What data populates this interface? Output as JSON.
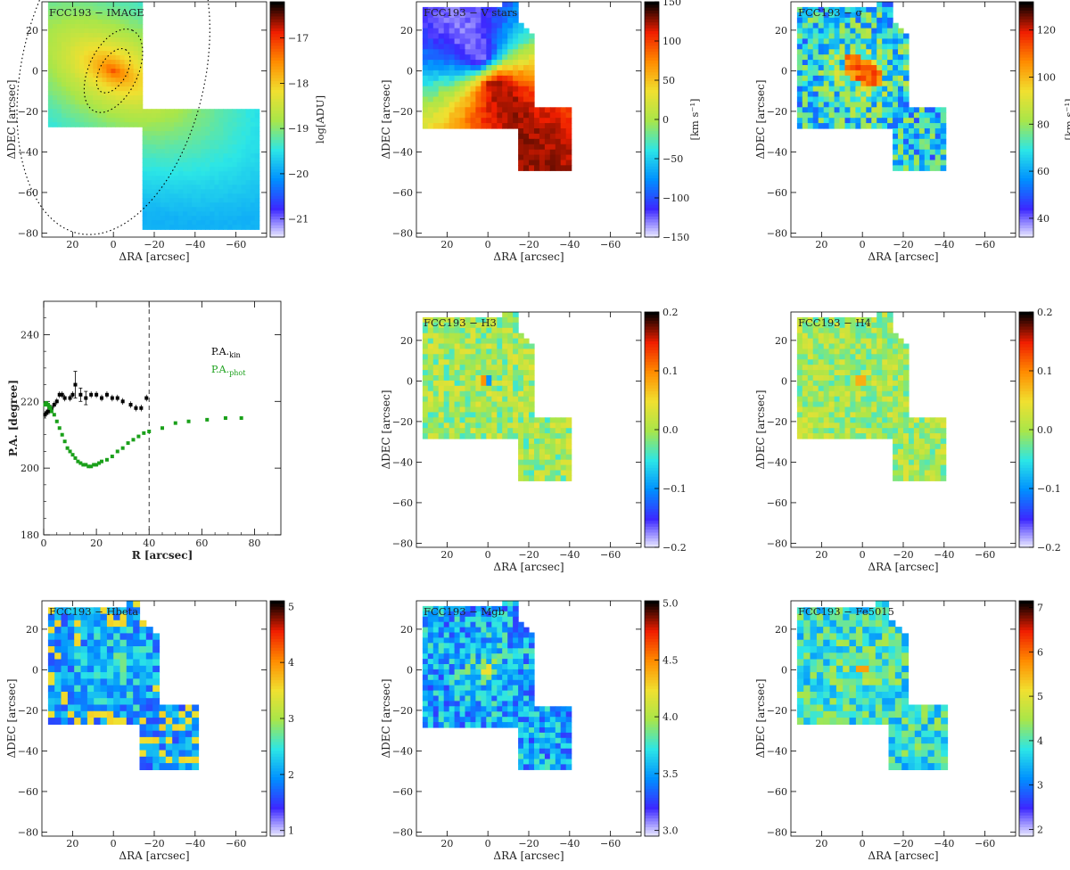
{
  "colors": {
    "cmap": [
      "#f4f4ff",
      "#3c28ff",
      "#0090ff",
      "#2ce6e6",
      "#a8e64a",
      "#f0e030",
      "#ff8c00",
      "#f01e00",
      "#000000"
    ]
  },
  "common": {
    "xlabel": "ΔRA [arcsec]",
    "ylabel": "ΔDEC [arcsec]",
    "xlim": [
      35,
      -75
    ],
    "ylim": [
      -82,
      34
    ],
    "xticks": [
      20,
      0,
      -20,
      -40,
      -60
    ],
    "xtick_labels": [
      "20",
      "0",
      "−20",
      "−40",
      "−60"
    ],
    "yticks": [
      20,
      0,
      -20,
      -40,
      -60,
      -80
    ],
    "ytick_labels": [
      "20",
      "0",
      "−20",
      "−40",
      "−60",
      "−80"
    ]
  },
  "panels": [
    {
      "id": "image",
      "label": "FCC193 − IMAGE",
      "type": "heatmap",
      "field": "image",
      "coverage": "full",
      "colorbar": {
        "min": -21.4,
        "max": -16.2,
        "ticks": [
          -17,
          -18,
          -19,
          -20,
          -21
        ],
        "tick_labels": [
          "−17",
          "−18",
          "−19",
          "−20",
          "−21"
        ],
        "label": "log[ADU]"
      },
      "isophotes": [
        {
          "a": 12,
          "b": 6.5,
          "pa_deg": 30
        },
        {
          "a": 22,
          "b": 12,
          "pa_deg": 25
        },
        {
          "a": 82,
          "b": 45,
          "pa_deg": 12
        }
      ]
    },
    {
      "id": "vstars",
      "label": "FCC193 − V stars",
      "type": "heatmap",
      "field": "velocity",
      "coverage": "partial",
      "colorbar": {
        "min": -150,
        "max": 150,
        "ticks": [
          150,
          100,
          50,
          0,
          -50,
          -100,
          -150
        ],
        "tick_labels": [
          "150",
          "100",
          "50",
          "0",
          "−50",
          "−100",
          "−150"
        ],
        "label": "[km s⁻¹]"
      }
    },
    {
      "id": "sigma",
      "label": "FCC193 − σ",
      "type": "heatmap",
      "field": "sigma",
      "coverage": "partial",
      "colorbar": {
        "min": 32,
        "max": 132,
        "ticks": [
          120,
          100,
          80,
          60,
          40
        ],
        "tick_labels": [
          "120",
          "100",
          "80",
          "60",
          "40"
        ],
        "label": "[km s⁻¹]"
      }
    },
    {
      "id": "pa",
      "type": "scatter",
      "xlabel": "R [arcsec]",
      "ylabel": "P.A. [degree]",
      "xlim": [
        0,
        90
      ],
      "ylim": [
        180,
        250
      ],
      "xticks": [
        0,
        20,
        40,
        60,
        80
      ],
      "yticks": [
        180,
        200,
        220,
        240
      ],
      "vline_x": 40,
      "series": [
        {
          "name": "P.A.kin",
          "legend_main": "P.A.",
          "legend_sub": "kin",
          "color": "#000000",
          "x": [
            0.5,
            1,
            1.5,
            2,
            3,
            4,
            5,
            6,
            7,
            8,
            10,
            11,
            12,
            14,
            16,
            18,
            20,
            22,
            24,
            26,
            28,
            30,
            33,
            35,
            37,
            39
          ],
          "y": [
            216,
            216.5,
            217,
            217,
            218,
            219,
            220,
            222,
            222,
            221,
            221,
            222,
            225,
            222,
            221,
            222,
            222,
            221,
            222,
            221,
            221,
            220,
            219,
            218,
            218,
            221
          ],
          "err": [
            1,
            1,
            1,
            1,
            1,
            1,
            1,
            1,
            1,
            1,
            1,
            1,
            4,
            2,
            2,
            1,
            1,
            1,
            1,
            1,
            1,
            1,
            1,
            1,
            1,
            1
          ]
        },
        {
          "name": "P.A.phot",
          "legend_main": "P.A.",
          "legend_sub": "phot",
          "color": "#1aa01a",
          "x": [
            0.5,
            0.8,
            1.1,
            1.4,
            1.7,
            2,
            2.3,
            2.6,
            3,
            4,
            5,
            6,
            7,
            8,
            9,
            10,
            11,
            12,
            13,
            14,
            15,
            16,
            17,
            18,
            19,
            20,
            21,
            22,
            24,
            26,
            28,
            30,
            32,
            34,
            36,
            38,
            40,
            45,
            50,
            55,
            62,
            69,
            75
          ],
          "y": [
            219,
            219.5,
            219.5,
            219,
            219,
            218.5,
            218,
            218,
            217,
            216,
            214,
            212,
            210,
            208,
            206,
            205,
            204,
            203,
            202,
            201.5,
            201,
            201,
            200.5,
            200.5,
            201,
            201,
            201.5,
            202,
            202.5,
            203.5,
            205,
            206,
            207.5,
            208.5,
            209.5,
            210.5,
            211,
            212,
            213.5,
            214,
            214.5,
            215,
            215
          ]
        }
      ]
    },
    {
      "id": "h3",
      "label": "FCC193 − H3",
      "type": "heatmap",
      "field": "h3",
      "coverage": "partial",
      "colorbar": {
        "min": -0.2,
        "max": 0.2,
        "ticks": [
          0.2,
          0.1,
          0.0,
          -0.1,
          -0.2
        ],
        "tick_labels": [
          "0.2",
          "0.1",
          "0.0",
          "−0.1",
          "−0.2"
        ],
        "label": ""
      }
    },
    {
      "id": "h4",
      "label": "FCC193 − H4",
      "type": "heatmap",
      "field": "h4",
      "coverage": "partial",
      "colorbar": {
        "min": -0.2,
        "max": 0.2,
        "ticks": [
          0.2,
          0.1,
          0.0,
          -0.1,
          -0.2
        ],
        "tick_labels": [
          "0.2",
          "0.1",
          "0.0",
          "−0.1",
          "−0.2"
        ],
        "label": ""
      }
    },
    {
      "id": "hbeta",
      "label": "FCC193 − Hbeta",
      "type": "heatmap",
      "field": "hbeta",
      "coverage": "partial",
      "colorbar": {
        "min": 0.9,
        "max": 5.1,
        "ticks": [
          5,
          4,
          3,
          2,
          1
        ],
        "tick_labels": [
          "5",
          "4",
          "3",
          "2",
          "1"
        ],
        "label": ""
      }
    },
    {
      "id": "mgb",
      "label": "FCC193 − Mgb",
      "type": "heatmap",
      "field": "mgb",
      "coverage": "partial",
      "colorbar": {
        "min": 2.95,
        "max": 5.02,
        "ticks": [
          5.0,
          4.5,
          4.0,
          3.5,
          3.0
        ],
        "tick_labels": [
          "5.0",
          "4.5",
          "4.0",
          "3.5",
          "3.0"
        ],
        "label": ""
      }
    },
    {
      "id": "fe5015",
      "label": "FCC193 − Fe5015",
      "type": "heatmap",
      "field": "fe5015",
      "coverage": "partial",
      "colorbar": {
        "min": 1.85,
        "max": 7.15,
        "ticks": [
          7,
          6,
          5,
          4,
          3,
          2
        ],
        "tick_labels": [
          "7",
          "6",
          "5",
          "4",
          "3",
          "2"
        ],
        "label": ""
      }
    }
  ]
}
